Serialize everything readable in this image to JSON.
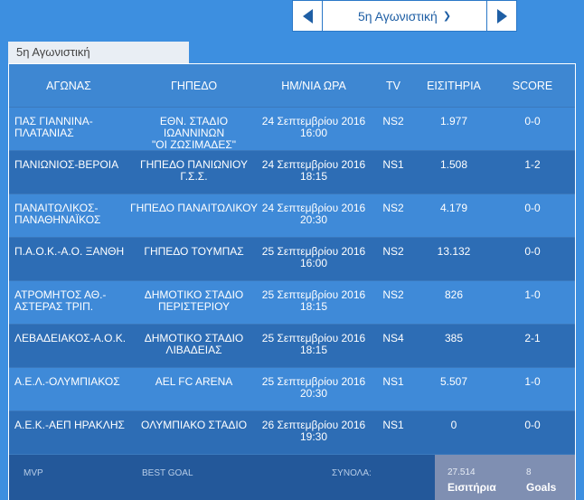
{
  "nav": {
    "round_label": "5η Αγωνιστική",
    "prev_icon": "triangle-left-icon",
    "next_icon": "triangle-right-icon",
    "dropdown_icon": "chevron-down-icon"
  },
  "tab": {
    "label": "5η Αγωνιστική"
  },
  "table": {
    "headers": [
      "ΑΓΩΝΑΣ",
      "ΓΗΠΕΔΟ",
      "ΗΜ/ΝΙΑ ΩΡΑ",
      "TV",
      "ΕΙΣΙΤΗΡΙΑ",
      "SCORE"
    ],
    "rows": [
      {
        "match_l1": "ΠΑΣ ΓΙΑΝΝΙΝΑ-",
        "match_l2": "ΠΛΑΤΑΝΙΑΣ",
        "stadium_l1": "ΕΘΝ. ΣΤΑΔΙΟ ΙΩΑΝΝΙΝΩΝ",
        "stadium_l2": "\"ΟΙ ΖΩΣΙΜΑΔΕΣ\"",
        "date": "24 Σεπτεμβρίου 2016",
        "time": "16:00",
        "tv": "NS2",
        "tickets": "1.977",
        "score": "0-0"
      },
      {
        "match_l1": "ΠΑΝΙΩΝΙΟΣ-ΒΕΡΟΙΑ",
        "match_l2": "",
        "stadium_l1": "ΓΗΠΕΔΟ ΠΑΝΙΩΝΙΟΥ",
        "stadium_l2": "Γ.Σ.Σ.",
        "date": "24 Σεπτεμβρίου 2016",
        "time": "18:15",
        "tv": "NS1",
        "tickets": "1.508",
        "score": "1-2"
      },
      {
        "match_l1": "ΠΑΝΑΙΤΩΛΙΚΟΣ-",
        "match_l2": "ΠΑΝΑΘΗΝΑΪΚΟΣ",
        "stadium_l1": "ΓΗΠΕΔΟ ΠΑΝΑΙΤΩΛΙΚΟΥ",
        "stadium_l2": "",
        "date": "24 Σεπτεμβρίου 2016",
        "time": "20:30",
        "tv": "NS2",
        "tickets": "4.179",
        "score": "0-0"
      },
      {
        "match_l1": "Π.Α.Ο.Κ.-Α.Ο. ΞΑΝΘΗ",
        "match_l2": "",
        "stadium_l1": "ΓΗΠΕΔΟ ΤΟΥΜΠΑΣ",
        "stadium_l2": "",
        "date": "25 Σεπτεμβρίου 2016",
        "time": "16:00",
        "tv": "NS2",
        "tickets": "13.132",
        "score": "0-0"
      },
      {
        "match_l1": "ΑΤΡΟΜΗΤΟΣ ΑΘ.-",
        "match_l2": "ΑΣΤΕΡΑΣ ΤΡΙΠ.",
        "stadium_l1": "ΔΗΜΟΤΙΚΟ ΣΤΑΔΙΟ",
        "stadium_l2": "ΠΕΡΙΣΤΕΡΙΟΥ",
        "date": "25 Σεπτεμβρίου 2016",
        "time": "18:15",
        "tv": "NS2",
        "tickets": "826",
        "score": "1-0"
      },
      {
        "match_l1": "ΛΕΒΑΔΕΙΑΚΟΣ-Α.Ο.Κ.",
        "match_l2": "",
        "stadium_l1": "ΔΗΜΟΤΙΚΟ ΣΤΑΔΙΟ",
        "stadium_l2": "ΛΙΒΑΔΕΙΑΣ",
        "date": "25 Σεπτεμβρίου 2016",
        "time": "18:15",
        "tv": "NS4",
        "tickets": "385",
        "score": "2-1"
      },
      {
        "match_l1": "Α.Ε.Λ.-ΟΛΥΜΠΙΑΚΟΣ",
        "match_l2": "",
        "stadium_l1": "AEL FC ARENA",
        "stadium_l2": "",
        "date": "25 Σεπτεμβρίου 2016",
        "time": "20:30",
        "tv": "NS1",
        "tickets": "5.507",
        "score": "1-0"
      },
      {
        "match_l1": "Α.Ε.Κ.-ΑΕΠ ΗΡΑΚΛΗΣ",
        "match_l2": "",
        "stadium_l1": "ΟΛΥΜΠΙΑΚΟ ΣΤΑΔΙΟ",
        "stadium_l2": "",
        "date": "26 Σεπτεμβρίου 2016",
        "time": "19:30",
        "tv": "NS1",
        "tickets": "0",
        "score": "0-0"
      }
    ]
  },
  "footer": {
    "mvp_label": "MVP",
    "best_goal_label": "BEST GOAL",
    "total_label": "ΣΥΝΟΛΑ:",
    "tickets_total": "27.514",
    "tickets_label": "Εισιτήρια",
    "goals_total": "8",
    "goals_label": "Goals"
  },
  "colors": {
    "page_bg": "#3d8fe0",
    "row_light": "#3f8ad8",
    "row_dark": "#2d6db5",
    "footer_bg": "#23589a",
    "totals_bg": "#7f8fb2"
  }
}
